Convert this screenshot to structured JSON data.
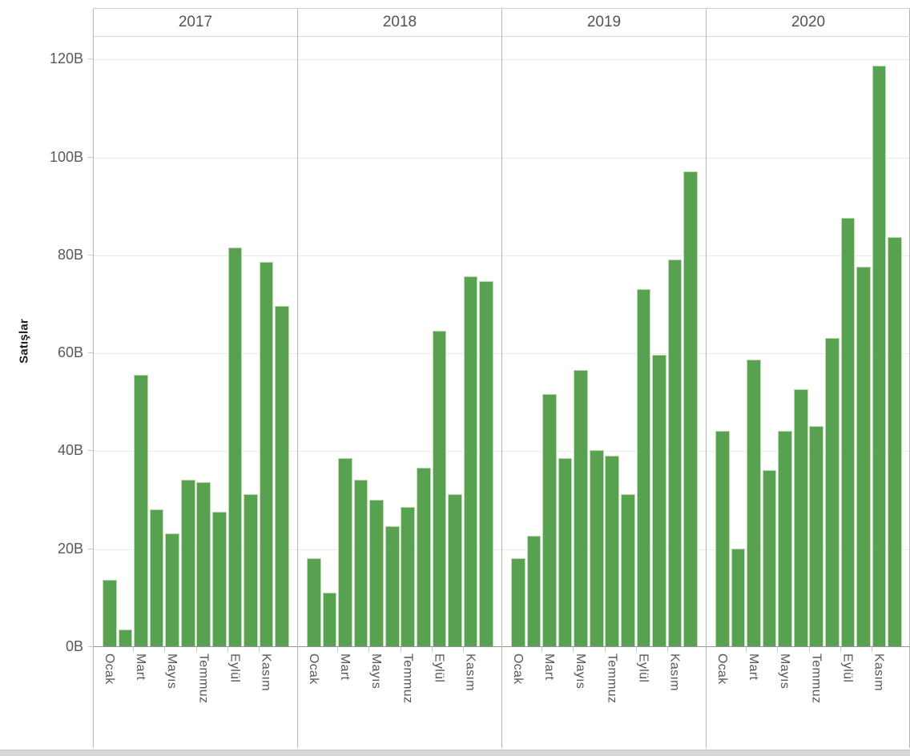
{
  "chart_data": {
    "type": "bar",
    "title": "",
    "ylabel": "Satışlar",
    "xlabel": "",
    "unit_suffix": "B",
    "ylim": [
      0,
      124.5
    ],
    "yticks": [
      0,
      20,
      40,
      60,
      80,
      100,
      120
    ],
    "ytick_labels": [
      "0B",
      "20B",
      "40B",
      "60B",
      "80B",
      "100B",
      "120B"
    ],
    "grid": true,
    "legend": "none",
    "panel_headers": [
      "2017",
      "2018",
      "2019",
      "2020"
    ],
    "x_tick_labels": [
      "Ocak",
      "Mart",
      "Mayıs",
      "Temmuz",
      "Eylül",
      "Kasım"
    ],
    "x_tick_bar_positions": [
      1,
      3,
      5,
      7,
      9,
      11
    ],
    "bars_per_panel": 12,
    "bar_color": "#58a150",
    "series": [
      {
        "name": "2017",
        "values": [
          13.5,
          3.5,
          55.5,
          28,
          23,
          34,
          33.5,
          27.5,
          81.5,
          31,
          78.5,
          69.5
        ]
      },
      {
        "name": "2018",
        "values": [
          18,
          11,
          38.5,
          34,
          30,
          24.5,
          28.5,
          36.5,
          64.5,
          31,
          75.5,
          74.5
        ]
      },
      {
        "name": "2019",
        "values": [
          18,
          22.5,
          51.5,
          38.5,
          56.5,
          40,
          39,
          31,
          73,
          59.5,
          79,
          97
        ]
      },
      {
        "name": "2020",
        "values": [
          44,
          20,
          58.5,
          36,
          44,
          52.5,
          45,
          63,
          87.5,
          77.5,
          118.5,
          83.5
        ]
      }
    ]
  }
}
